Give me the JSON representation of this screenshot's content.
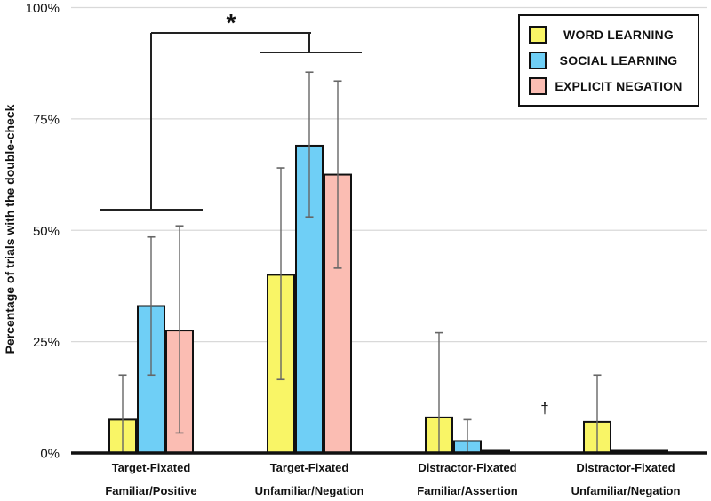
{
  "chart_data": {
    "type": "bar",
    "title": "",
    "ylabel": "Percentage of trials with the double-check",
    "xlabel": "",
    "ylim": [
      0,
      100
    ],
    "grid": "horizontal",
    "legend_position": "top-right",
    "y_ticks": [
      {
        "value": 100,
        "label": "100%"
      },
      {
        "value": 75,
        "label": "75%"
      },
      {
        "value": 50,
        "label": "50%"
      },
      {
        "value": 25,
        "label": "25%"
      },
      {
        "value": 0,
        "label": "0%"
      }
    ],
    "categories": [
      {
        "line1": "Target-Fixated",
        "line2": "Familiar/Positive"
      },
      {
        "line1": "Target-Fixated",
        "line2": "Unfamiliar/Negation"
      },
      {
        "line1": "Distractor-Fixated",
        "line2": "Familiar/Assertion"
      },
      {
        "line1": "Distractor-Fixated",
        "line2": "Unfamiliar/Negation"
      }
    ],
    "series": [
      {
        "name": "WORD LEARNING",
        "color": "#F9F566",
        "values": [
          7.5,
          40,
          8,
          7
        ],
        "error_low": [
          0,
          16.5,
          0,
          0
        ],
        "error_high": [
          17.5,
          64,
          27,
          17.5
        ]
      },
      {
        "name": "SOCIAL LEARNING",
        "color": "#6FCFF6",
        "values": [
          33,
          69,
          2.7,
          0.5
        ],
        "error_low": [
          17.5,
          53,
          0,
          null
        ],
        "error_high": [
          48.5,
          85.5,
          7.5,
          null
        ]
      },
      {
        "name": "EXPLICIT NEGATION",
        "color": "#FBBDB3",
        "values": [
          27.5,
          62.5,
          0.5,
          0.5
        ],
        "error_low": [
          4.5,
          41.5,
          null,
          null
        ],
        "error_high": [
          51,
          83.5,
          null,
          null
        ]
      }
    ],
    "annotations": [
      {
        "text": "*",
        "type": "significance-bracket",
        "compares": [
          "Target-Fixated Familiar/Positive",
          "Target-Fixated Unfamiliar/Negation"
        ]
      },
      {
        "text": "†",
        "type": "marginal-marker",
        "near": "between Distractor-Fixated groups"
      }
    ],
    "colors": {
      "bar_border": "#111111",
      "error_bar": "#666666",
      "gridline": "#D9D9D9",
      "axis": "#111111",
      "bracket": "#222222"
    }
  }
}
